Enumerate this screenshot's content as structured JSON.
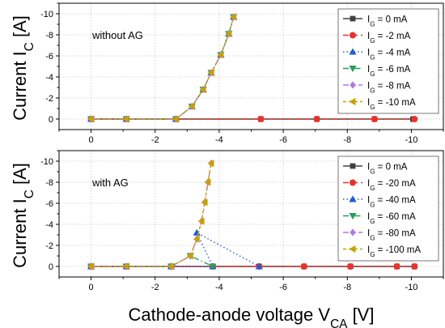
{
  "chart_data": [
    {
      "type": "line",
      "annotation": "without AG",
      "ylabel": "Current I",
      "ylabel_sub": "C",
      "ylabel_unit": " [A]",
      "xlim": [
        1,
        -11
      ],
      "ylim": [
        1,
        -11
      ],
      "xticks": [
        0,
        -2,
        -4,
        -6,
        -8,
        -10
      ],
      "yticks": [
        0,
        -2,
        -4,
        -6,
        -8,
        -10
      ],
      "grid": true,
      "legend_position": "top-right",
      "series": [
        {
          "name": "I",
          "name_sub": "G",
          "name_suffix": " = 0 mA",
          "color": "#404040",
          "marker": "square",
          "dash": "solid",
          "x": [
            0,
            -1.1,
            -2.65,
            -5.3,
            -7.05,
            -8.85,
            -10.05
          ],
          "y": [
            0,
            0,
            0,
            0,
            0,
            0,
            0
          ]
        },
        {
          "name": "I",
          "name_sub": "G",
          "name_suffix": " = -2 mA",
          "color": "#e8332c",
          "marker": "circle",
          "dash": "dash",
          "x": [
            0,
            -1.1,
            -2.65,
            -5.3,
            -7.05,
            -8.85,
            -10.1
          ],
          "y": [
            0,
            0,
            0,
            0,
            0,
            0,
            0
          ]
        },
        {
          "name": "I",
          "name_sub": "G",
          "name_suffix": " = -4 mA",
          "color": "#1f5fd1",
          "marker": "triangle-up",
          "dash": "dot",
          "x": [
            0,
            -1.1,
            -2.65,
            -3.15,
            -3.5,
            -3.75,
            -4.05,
            -4.3,
            -4.45
          ],
          "y": [
            0,
            0,
            0,
            -1.2,
            -2.8,
            -4.4,
            -6.1,
            -8.1,
            -9.7
          ]
        },
        {
          "name": "I",
          "name_sub": "G",
          "name_suffix": " = -6 mA",
          "color": "#2a9d5c",
          "marker": "triangle-down",
          "dash": "dashdot",
          "x": [
            0,
            -1.1,
            -2.65,
            -3.15,
            -3.5,
            -3.75,
            -4.05,
            -4.3,
            -4.45
          ],
          "y": [
            0,
            0,
            0,
            -1.2,
            -2.8,
            -4.4,
            -6.1,
            -8.1,
            -9.7
          ]
        },
        {
          "name": "I",
          "name_sub": "G",
          "name_suffix": " = -8 mA",
          "color": "#b07ae0",
          "marker": "diamond",
          "dash": "dashdotdot",
          "x": [
            0,
            -1.1,
            -2.65,
            -3.15,
            -3.5,
            -3.75,
            -4.05,
            -4.3,
            -4.45
          ],
          "y": [
            0,
            0,
            0,
            -1.2,
            -2.8,
            -4.4,
            -6.1,
            -8.1,
            -9.7
          ]
        },
        {
          "name": "I",
          "name_sub": "G",
          "name_suffix": " = -10 mA",
          "color": "#c9a000",
          "marker": "triangle-left",
          "dash": "shortdash",
          "x": [
            0,
            -1.1,
            -2.65,
            -3.15,
            -3.5,
            -3.75,
            -4.05,
            -4.3,
            -4.45
          ],
          "y": [
            0,
            0,
            0,
            -1.2,
            -2.8,
            -4.4,
            -6.1,
            -8.1,
            -9.7
          ]
        }
      ]
    },
    {
      "type": "line",
      "annotation": "with AG",
      "ylabel": "Current I",
      "ylabel_sub": "C",
      "ylabel_unit": " [A]",
      "xlabel": "Cathode-anode voltage V",
      "xlabel_sub": "CA",
      "xlabel_unit": " [V]",
      "xlim": [
        1,
        -11
      ],
      "ylim": [
        1,
        -11
      ],
      "xticks": [
        0,
        -2,
        -4,
        -6,
        -8,
        -10
      ],
      "yticks": [
        0,
        -2,
        -4,
        -6,
        -8,
        -10
      ],
      "grid": true,
      "legend_position": "top-right",
      "series": [
        {
          "name": "I",
          "name_sub": "G",
          "name_suffix": " = 0 mA",
          "color": "#404040",
          "marker": "square",
          "dash": "solid",
          "x": [
            0,
            -1.1,
            -2.5,
            -3.8,
            -5.25,
            -6.65,
            -8.1,
            -9.55,
            -10.1
          ],
          "y": [
            0,
            0,
            0,
            0,
            0,
            0,
            0,
            0,
            0
          ]
        },
        {
          "name": "I",
          "name_sub": "G",
          "name_suffix": " = -20 mA",
          "color": "#e8332c",
          "marker": "circle",
          "dash": "dash",
          "x": [
            0,
            -1.1,
            -2.5,
            -3.8,
            -5.25,
            -6.65,
            -8.1,
            -9.55,
            -10.1
          ],
          "y": [
            0,
            0,
            0,
            0,
            0,
            0,
            0,
            0,
            0
          ]
        },
        {
          "name": "I",
          "name_sub": "G",
          "name_suffix": " = -40 mA",
          "color": "#1f5fd1",
          "marker": "triangle-up",
          "dash": "dot",
          "x": [
            0,
            -1.1,
            -2.5,
            -3.8,
            -3.3,
            -5.25
          ],
          "y": [
            0,
            0,
            0,
            0,
            -3.2,
            0
          ]
        },
        {
          "name": "I",
          "name_sub": "G",
          "name_suffix": " = -60 mA",
          "color": "#2a9d5c",
          "marker": "triangle-down",
          "dash": "dashdot",
          "x": [
            0,
            -1.1,
            -2.5,
            -3.1,
            -3.8
          ],
          "y": [
            0,
            0,
            0,
            -1.0,
            0
          ]
        },
        {
          "name": "I",
          "name_sub": "G",
          "name_suffix": " = -80 mA",
          "color": "#b07ae0",
          "marker": "diamond",
          "dash": "dashdotdot",
          "x": [
            0,
            -1.1,
            -2.5,
            -3.1,
            -3.3,
            -3.45,
            -3.55,
            -3.65,
            -3.75
          ],
          "y": [
            0,
            0,
            0,
            -1.0,
            -2.6,
            -4.3,
            -6.1,
            -8.0,
            -9.8
          ]
        },
        {
          "name": "I",
          "name_sub": "G",
          "name_suffix": " = -100 mA",
          "color": "#c9a000",
          "marker": "triangle-left",
          "dash": "shortdash",
          "x": [
            0,
            -1.1,
            -2.5,
            -3.1,
            -3.3,
            -3.45,
            -3.55,
            -3.65,
            -3.75
          ],
          "y": [
            0,
            0,
            0,
            -1.0,
            -2.6,
            -4.3,
            -6.1,
            -8.0,
            -9.8
          ]
        }
      ]
    }
  ]
}
